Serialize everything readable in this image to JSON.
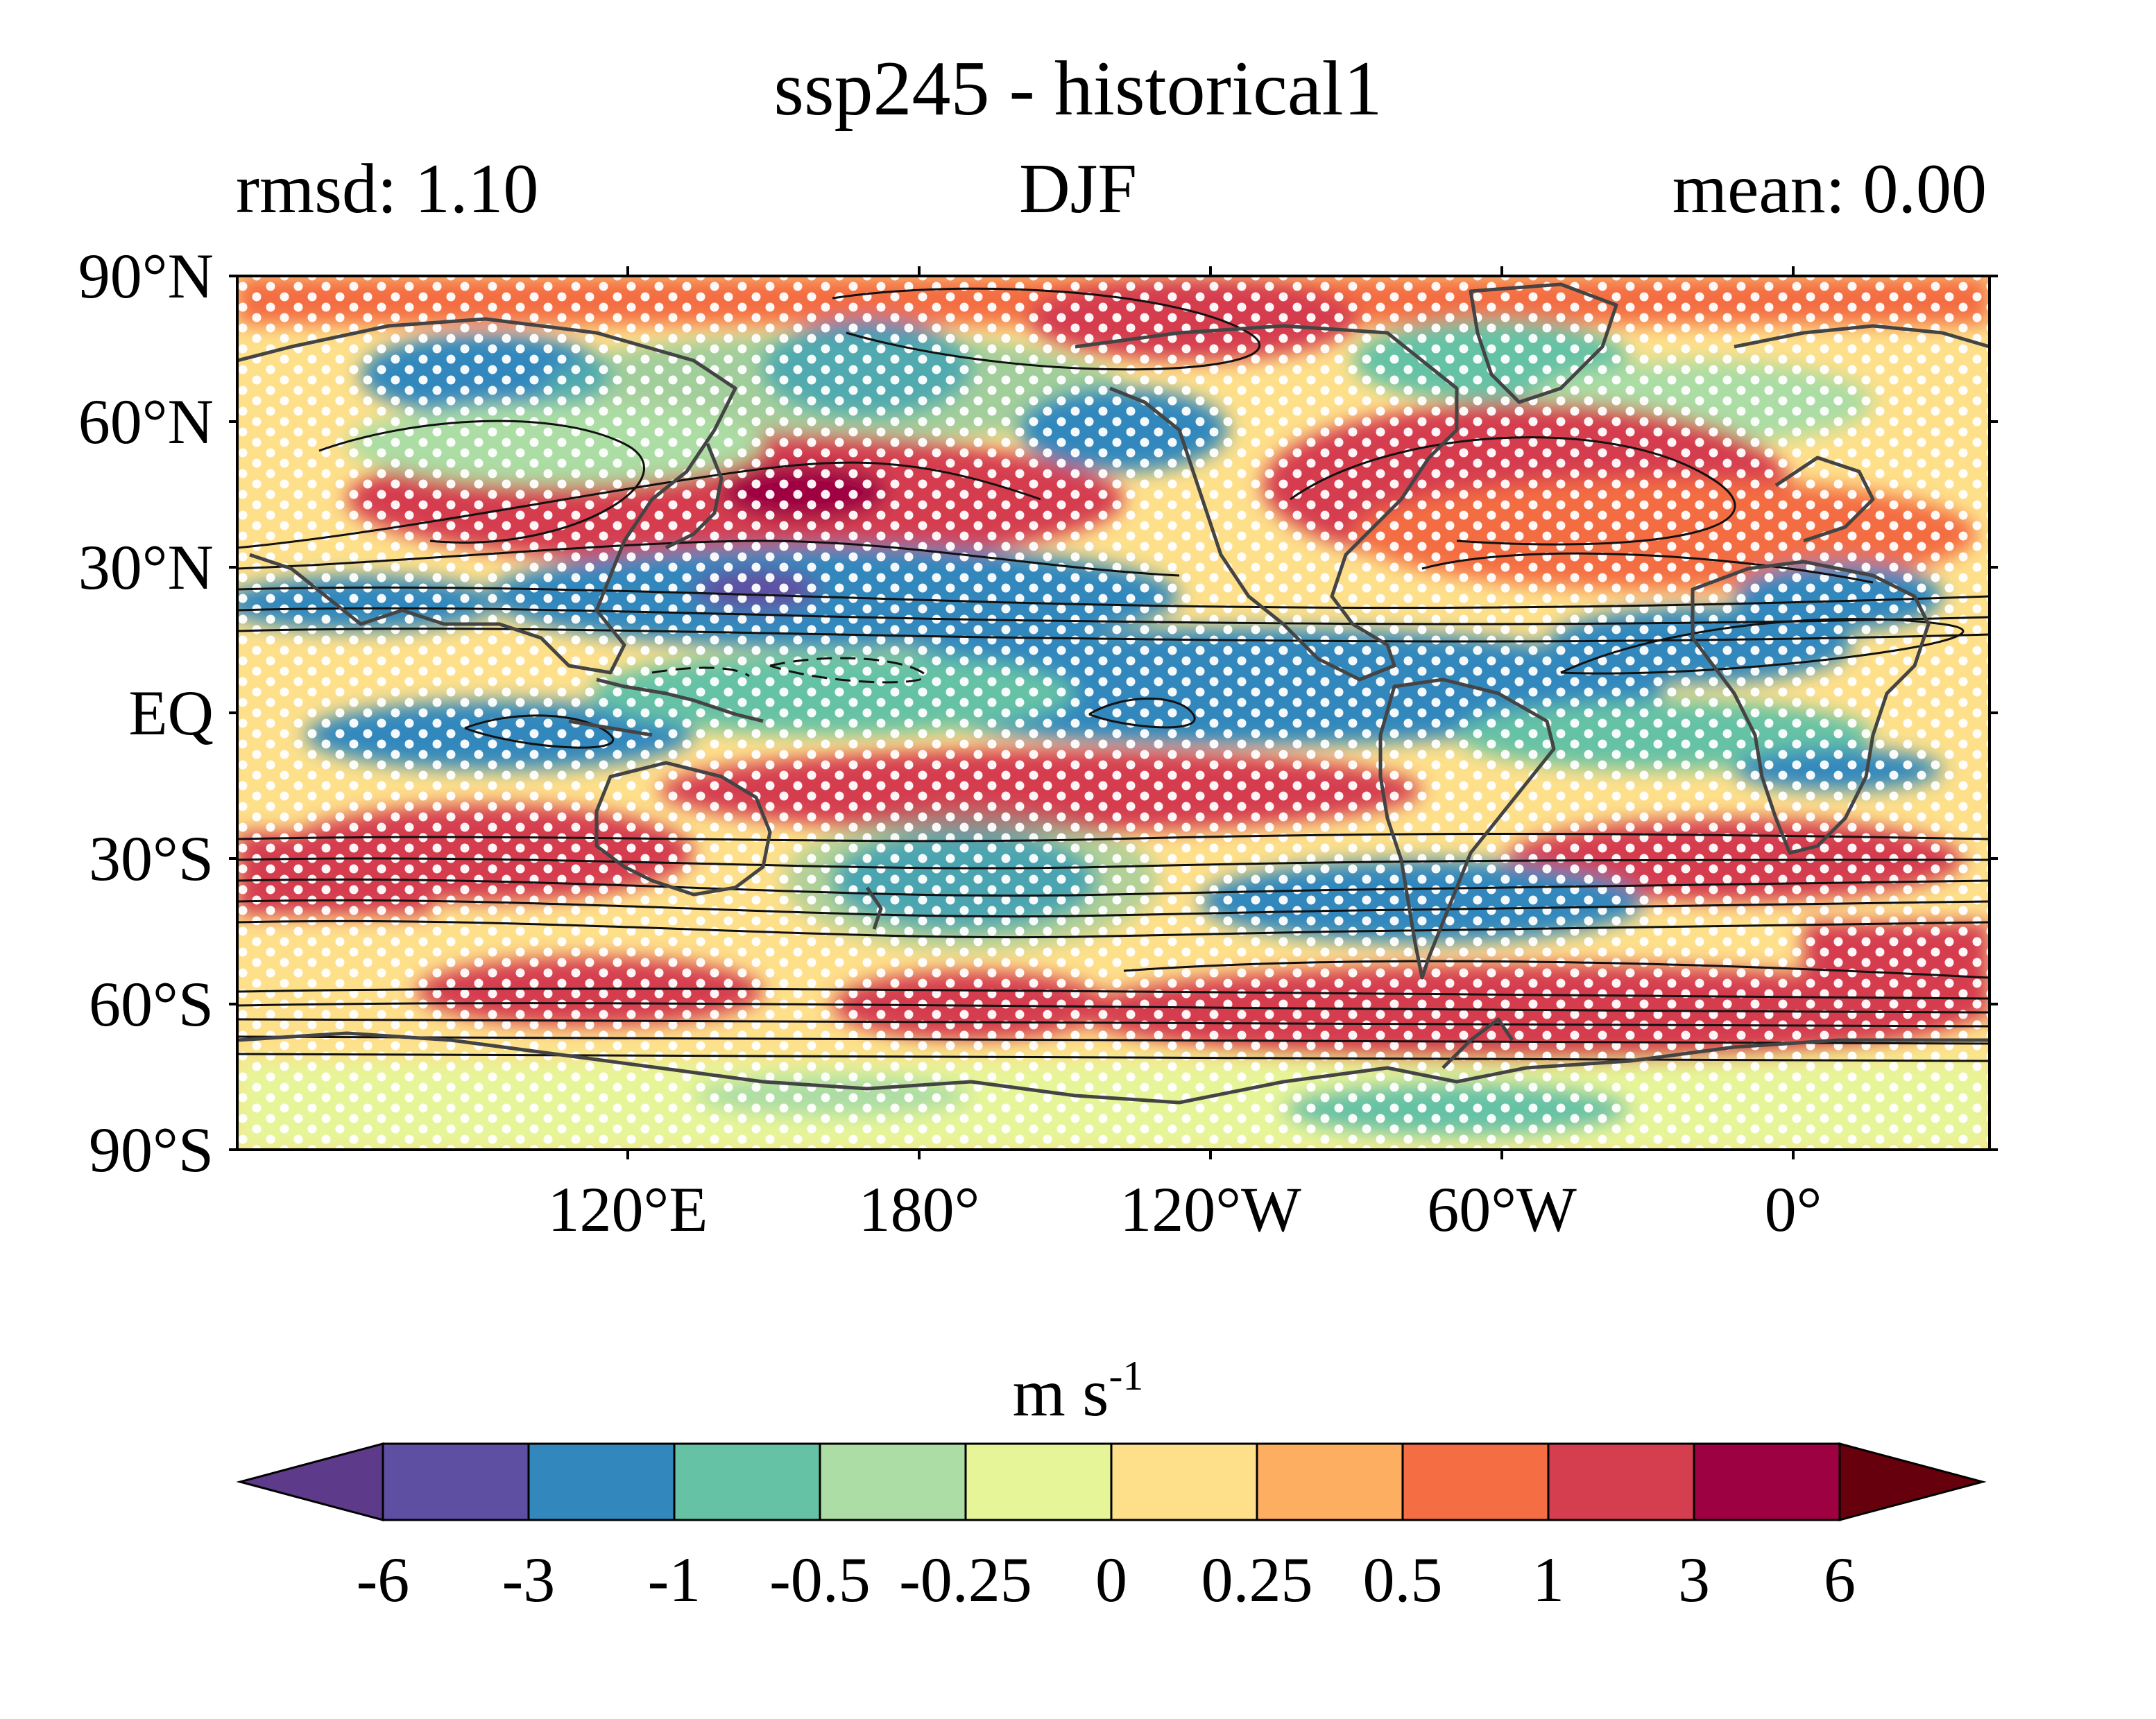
{
  "title": "ssp245 - historical1",
  "stats": {
    "left": "rmsd: 1.10",
    "center": "DJF",
    "right": "mean: 0.00"
  },
  "lat_labels": [
    "90°N",
    "60°N",
    "30°N",
    "EQ",
    "30°S",
    "60°S",
    "90°S"
  ],
  "lon_labels": [
    "120°E",
    "180°",
    "120°W",
    "60°W",
    "0°"
  ],
  "colorbar": {
    "units_base": "m s",
    "units_exp": "-1",
    "tick_labels": [
      "-6",
      "-3",
      "-1",
      "-0.5",
      "-0.25",
      "0",
      "0.25",
      "0.5",
      "1",
      "3",
      "6"
    ],
    "colors": [
      "#5e4fa2",
      "#3288bd",
      "#66c2a5",
      "#abdda4",
      "#e6f598",
      "#fee08b",
      "#fdae61",
      "#f46d43",
      "#d53e4f",
      "#9e0142"
    ],
    "under_color": "#5e3a8a",
    "over_color": "#67000d"
  }
}
